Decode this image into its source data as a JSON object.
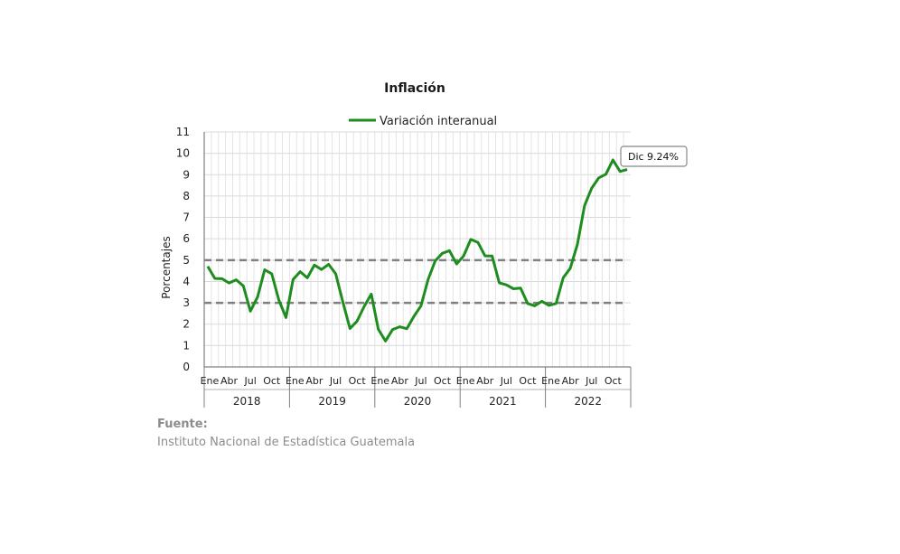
{
  "chart_data": {
    "type": "line",
    "title": "Inflación",
    "ylabel": "Porcentajes",
    "xlabel": "",
    "ylim": [
      0,
      11
    ],
    "yticks": [
      0,
      1,
      2,
      3,
      4,
      5,
      6,
      7,
      8,
      9,
      10,
      11
    ],
    "legend_placement": "top",
    "grid": true,
    "month_tick_labels": [
      "Ene",
      "Abr",
      "Jul",
      "Oct"
    ],
    "years": [
      "2018",
      "2019",
      "2020",
      "2021",
      "2022"
    ],
    "reference_lines": [
      3,
      5
    ],
    "series": [
      {
        "name": "Variación interanual",
        "color": "#1e8c1e",
        "values": [
          4.71,
          4.14,
          4.13,
          3.93,
          4.08,
          3.79,
          2.61,
          3.27,
          4.55,
          4.36,
          3.13,
          2.31,
          4.09,
          4.46,
          4.17,
          4.77,
          4.56,
          4.8,
          4.36,
          3.04,
          1.8,
          2.14,
          2.83,
          3.41,
          1.76,
          1.21,
          1.75,
          1.88,
          1.79,
          2.37,
          2.86,
          4.1,
          4.97,
          5.32,
          5.44,
          4.82,
          5.2,
          5.97,
          5.83,
          5.2,
          5.19,
          3.94,
          3.84,
          3.66,
          3.69,
          2.97,
          2.86,
          3.07,
          2.88,
          2.97,
          4.17,
          4.62,
          5.74,
          7.55,
          8.36,
          8.85,
          9.02,
          9.69,
          9.15,
          9.24
        ]
      }
    ],
    "annotation": {
      "text": "Dic 9.24%",
      "index": 59
    }
  },
  "source": {
    "label": "Fuente:",
    "text": "Instituto Nacional de Estadística Guatemala"
  }
}
